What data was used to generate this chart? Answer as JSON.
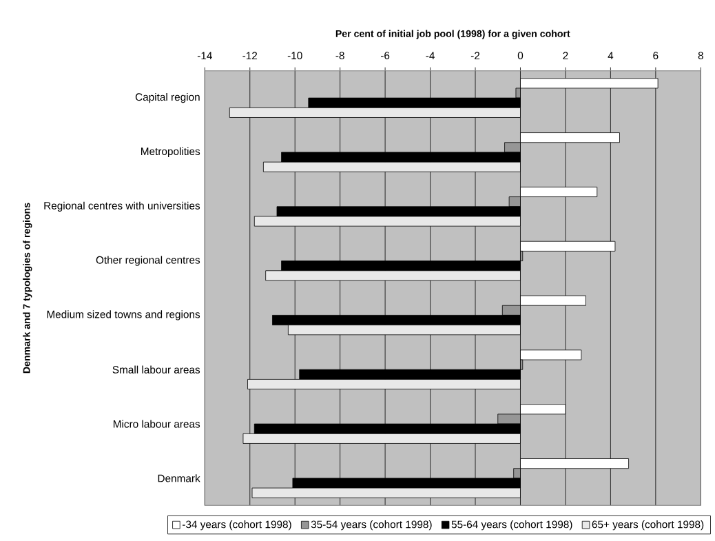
{
  "chart_data": {
    "type": "bar",
    "orientation": "horizontal",
    "xlabel": "Per cent of initial job pool (1998) for a given cohort",
    "ylabel": "Denmark and 7 typologies of regions",
    "categories": [
      "Capital region",
      "Metropolities",
      "Regional centres with universities",
      "Other regional centres",
      "Medium sized towns and regions",
      "Small labour areas",
      "Micro labour areas",
      "Denmark"
    ],
    "series": [
      {
        "name": "-34 years (cohort 1998)",
        "color": "#ffffff",
        "values": [
          6.1,
          4.4,
          3.4,
          4.2,
          2.9,
          2.7,
          2.0,
          4.8
        ]
      },
      {
        "name": "35-54 years (cohort 1998)",
        "color": "#969696",
        "values": [
          -0.2,
          -0.7,
          -0.5,
          0.1,
          -0.8,
          0.1,
          -1.0,
          -0.3
        ]
      },
      {
        "name": "55-64 years (cohort 1998)",
        "color": "#000000",
        "values": [
          -9.4,
          -10.6,
          -10.8,
          -10.6,
          -11.0,
          -9.8,
          -11.8,
          -10.1
        ]
      },
      {
        "name": "65+ years (cohort 1998)",
        "color": "#e8e8e8",
        "values": [
          -12.9,
          -11.4,
          -11.8,
          -11.3,
          -10.3,
          -12.1,
          -12.3,
          -11.9
        ]
      }
    ],
    "xlim": [
      -14,
      8
    ],
    "xticks": [
      -14,
      -12,
      -10,
      -8,
      -6,
      -4,
      -2,
      0,
      2,
      4,
      6,
      8
    ],
    "grid": "x",
    "legend": "bottom"
  }
}
